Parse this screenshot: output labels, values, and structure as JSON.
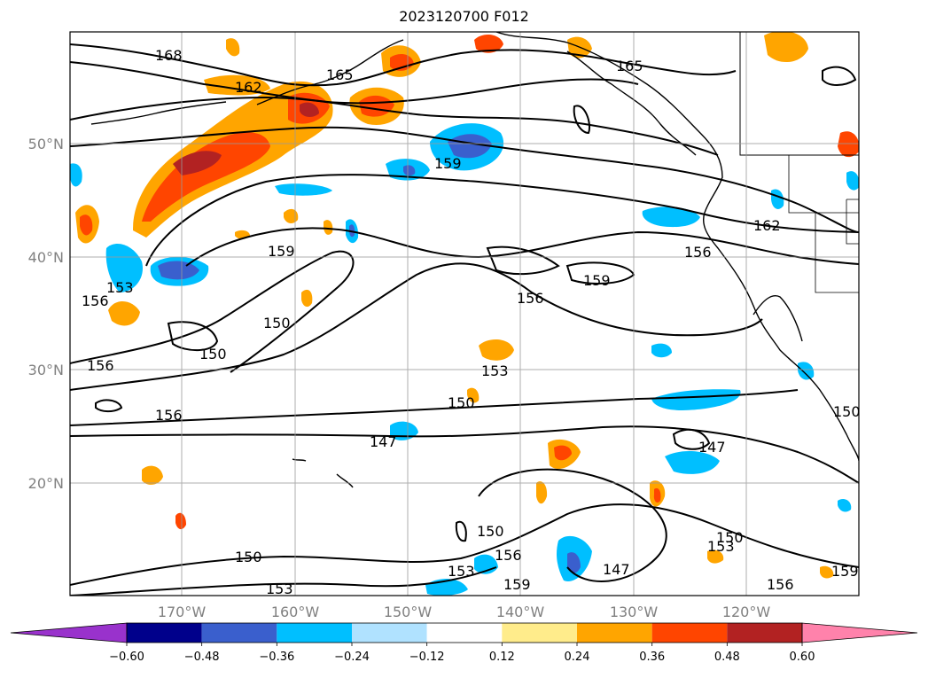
{
  "title": "2023120700 F012",
  "map": {
    "lat_labels": [
      "50°N",
      "40°N",
      "30°N",
      "20°N"
    ],
    "lon_labels": [
      "170°W",
      "160°W",
      "150°W",
      "140°W",
      "130°W",
      "120°W"
    ],
    "gridlines": true,
    "contours": [
      {
        "value": "168"
      },
      {
        "value": "165"
      },
      {
        "value": "162"
      },
      {
        "value": "159"
      },
      {
        "value": "156"
      },
      {
        "value": "153"
      },
      {
        "value": "150"
      },
      {
        "value": "147"
      }
    ],
    "contour_color": "#000000",
    "coastline_color": "#000000"
  },
  "colorbar": {
    "ticks": [
      "−0.60",
      "−0.48",
      "−0.36",
      "−0.24",
      "−0.12",
      "0.12",
      "0.24",
      "0.36",
      "0.48",
      "0.60"
    ],
    "colors": [
      "#9932cc",
      "#00008b",
      "#3a5fcd",
      "#00bfff",
      "#b0e2ff",
      "#ffffff",
      "#ffec8b",
      "#ffa500",
      "#ff4500",
      "#b22222",
      "#ff82ab"
    ],
    "extend": "both"
  }
}
